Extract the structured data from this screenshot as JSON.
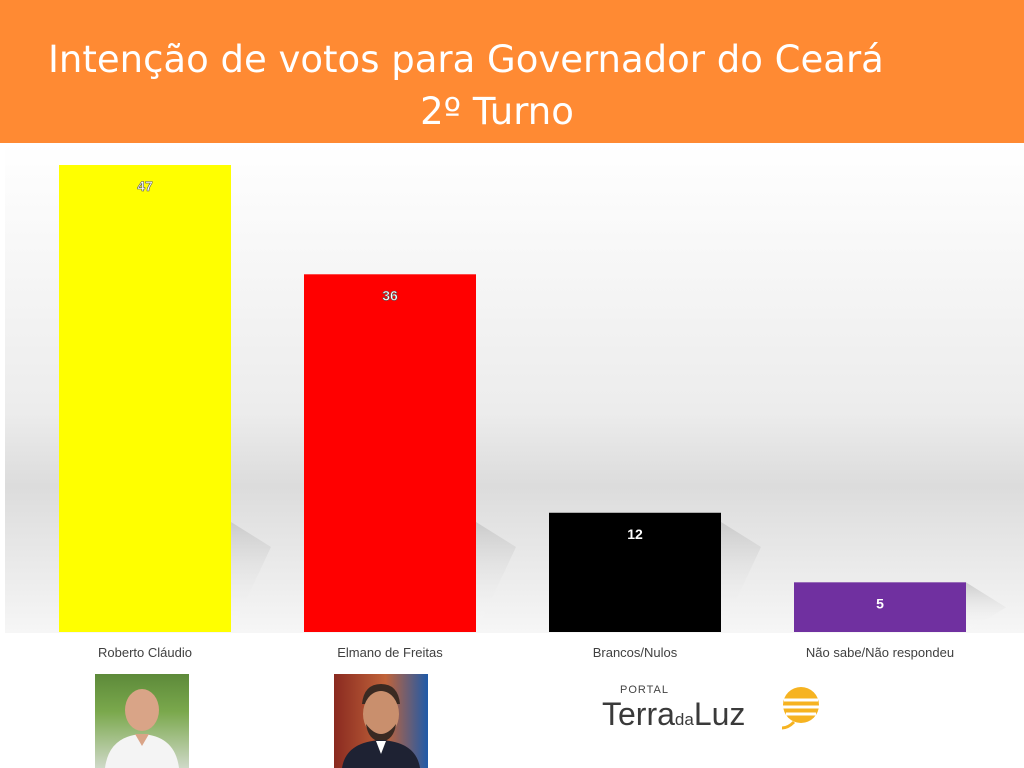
{
  "header": {
    "title_line1": "Intenção de votos para Governador do Ceará",
    "title_line2": "2º Turno"
  },
  "colors": {
    "header_bg": "#ff8a33",
    "bar_roberto": "#ffff00",
    "bar_elmano": "#ff0000",
    "bar_brancos": "#000000",
    "bar_nao_sabe": "#7030a0"
  },
  "chart_data": {
    "type": "bar",
    "categories": [
      "Roberto Cláudio",
      "Elmano de Freitas",
      "Brancos/Nulos",
      "Não sabe/Não respondeu"
    ],
    "values": [
      47,
      36,
      12,
      5
    ],
    "data_labels": [
      "47",
      "36",
      "12",
      "5"
    ],
    "bar_colors": [
      "#ffff00",
      "#ff0000",
      "#000000",
      "#7030a0"
    ],
    "ylim": [
      0,
      47
    ],
    "grid": false,
    "legend": "none"
  },
  "photos": [
    {
      "name": "roberto-claudio-photo"
    },
    {
      "name": "elmano-de-freitas-photo"
    }
  ],
  "logo": {
    "portal": "PORTAL",
    "terra": "Terra",
    "da": "da",
    "luz": "Luz"
  }
}
